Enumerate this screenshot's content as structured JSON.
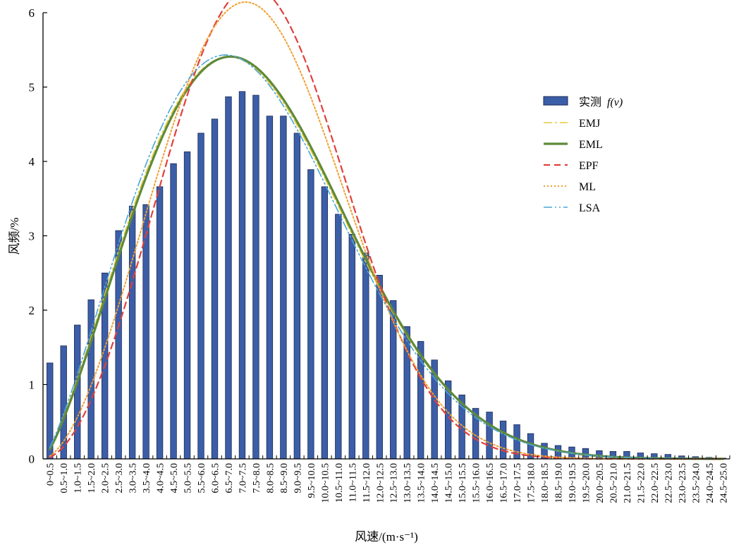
{
  "chart_data": {
    "type": "bar",
    "xlabel": "风速/(m·s⁻¹)",
    "ylabel": "风频/%",
    "ylim": [
      0,
      6
    ],
    "yticks": [
      "0",
      "1",
      "2",
      "3",
      "4",
      "5",
      "6"
    ],
    "grid": false,
    "legend_position": "right",
    "categories": [
      "0~0.5",
      "0.5~1.0",
      "1.0~1.5",
      "1.5~2.0",
      "2.0~2.5",
      "2.5~3.0",
      "3.0~3.5",
      "3.5~4.0",
      "4.0~4.5",
      "4.5~5.0",
      "5.0~5.5",
      "5.5~6.0",
      "6.0~6.5",
      "6.5~7.0",
      "7.0~7.5",
      "7.5~8.0",
      "8.0~8.5",
      "8.5~9.0",
      "9.0~9.5",
      "9.5~10.0",
      "10.0~10.5",
      "10.5~11.0",
      "11.0~11.5",
      "11.5~12.0",
      "12.0~12.5",
      "12.5~13.0",
      "13.0~13.5",
      "13.5~14.0",
      "14.0~14.5",
      "14.5~15.0",
      "15.0~15.5",
      "15.5~16.0",
      "16.0~16.5",
      "16.5~17.0",
      "17.0~17.5",
      "17.5~18.0",
      "18.0~18.5",
      "18.5~19.0",
      "19.0~19.5",
      "19.5~20.0",
      "20.0~20.5",
      "20.5~21.0",
      "21.0~21.5",
      "21.5~22.0",
      "22.0~22.5",
      "22.5~23.0",
      "23.0~23.5",
      "23.5~24.0",
      "24.0~24.5",
      "24.5~25.0"
    ],
    "bars": {
      "name": "实测 f(v)",
      "name_main": "实测",
      "name_func": "f(v)",
      "color": "#3c5ea8",
      "values": [
        1.29,
        1.52,
        1.8,
        2.14,
        2.5,
        3.07,
        3.4,
        3.42,
        3.66,
        3.97,
        4.13,
        4.38,
        4.57,
        4.87,
        4.94,
        4.89,
        4.61,
        4.61,
        4.38,
        3.89,
        3.66,
        3.29,
        3.02,
        2.77,
        2.47,
        2.13,
        1.78,
        1.58,
        1.33,
        1.05,
        0.86,
        0.68,
        0.63,
        0.51,
        0.46,
        0.34,
        0.21,
        0.18,
        0.16,
        0.14,
        0.11,
        0.1,
        0.1,
        0.08,
        0.07,
        0.06,
        0.04,
        0.03,
        0.02,
        0.01
      ]
    },
    "curves": [
      {
        "name": "EMJ",
        "color": "#e8cc3a",
        "dash": "12,4,3,4",
        "width": 1.6,
        "k": 2.28,
        "c": 8.7
      },
      {
        "name": "EML",
        "color": "#5e8a3a",
        "dash": "",
        "width": 3.2,
        "k": 2.3,
        "c": 8.75
      },
      {
        "name": "EPF",
        "color": "#e0403c",
        "dash": "9,6",
        "width": 2.2,
        "k": 2.85,
        "c": 8.85
      },
      {
        "name": "ML",
        "color": "#f0a030",
        "dash": "2,3",
        "width": 2.0,
        "k": 2.7,
        "c": 8.75
      },
      {
        "name": "LSA",
        "color": "#4aa6d6",
        "dash": "12,4,2,4,2,4",
        "width": 1.6,
        "k": 2.26,
        "c": 8.6
      }
    ]
  }
}
